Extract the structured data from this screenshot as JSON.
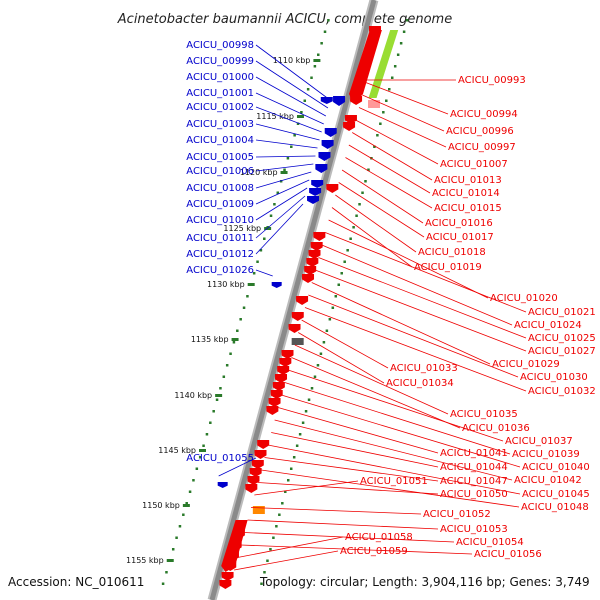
{
  "title": "Acinetobacter baumannii ACICU, complete genome",
  "footer": {
    "accession": "Accession: NC_010611",
    "summary": "Topology: circular; Length: 3,904,116 bp; Genes: 3,749"
  },
  "colors": {
    "left_genes": "#0000cc",
    "right_genes": "#ee0000",
    "backbone": "#8a8a8a",
    "tick": "#2a7a2a",
    "rrna_green": "#99dd33",
    "trna_pink": "#ff9999",
    "pseudo_grey": "#555555",
    "misc_orange": "#ff8800"
  },
  "kbp_ticks": [
    "1110 kbp",
    "1115 kbp",
    "1120 kbp",
    "1125 kbp",
    "1130 kbp",
    "1135 kbp",
    "1140 kbp",
    "1145 kbp",
    "1150 kbp",
    "1155 kbp"
  ],
  "left_labels": [
    "ACICU_00998",
    "ACICU_00999",
    "ACICU_01000",
    "ACICU_01001",
    "ACICU_01002",
    "ACICU_01003",
    "ACICU_01004",
    "ACICU_01005",
    "ACICU_01006",
    "ACICU_01008",
    "ACICU_01009",
    "ACICU_01010",
    "ACICU_01011",
    "ACICU_01012",
    "ACICU_01026",
    "ACICU_01055"
  ],
  "right_labels": [
    "ACICU_00993",
    "ACICU_00994",
    "ACICU_00996",
    "ACICU_00997",
    "ACICU_01007",
    "ACICU_01013",
    "ACICU_01014",
    "ACICU_01015",
    "ACICU_01016",
    "ACICU_01017",
    "ACICU_01018",
    "ACICU_01019",
    "ACICU_01020",
    "ACICU_01021",
    "ACICU_01024",
    "ACICU_01025",
    "ACICU_01027",
    "ACICU_01029",
    "ACICU_01030",
    "ACICU_01032",
    "ACICU_01033",
    "ACICU_01034",
    "ACICU_01035",
    "ACICU_01036",
    "ACICU_01037",
    "ACICU_01039",
    "ACICU_01040",
    "ACICU_01041",
    "ACICU_01042",
    "ACICU_01044",
    "ACICU_01045",
    "ACICU_01047",
    "ACICU_01048",
    "ACICU_01050",
    "ACICU_01051",
    "ACICU_01052",
    "ACICU_01053",
    "ACICU_01054",
    "ACICU_01056",
    "ACICU_01058",
    "ACICU_01059"
  ]
}
